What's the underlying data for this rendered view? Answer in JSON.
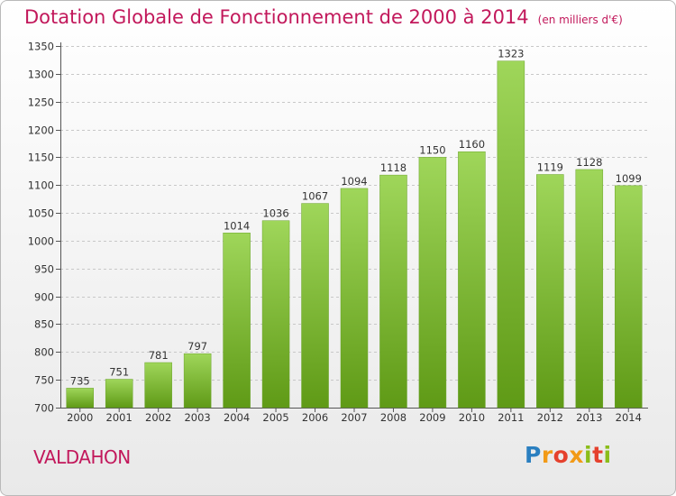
{
  "header": {
    "title": "Dotation Globale de Fonctionnement de 2000 à 2014",
    "unit": "(en milliers d'€)"
  },
  "footer": {
    "commune": "VALDAHON",
    "logo_text": "Proxiti"
  },
  "colors": {
    "title": "#c2185b",
    "bar_top": "#9fd65a",
    "bar_bottom": "#5f9a16",
    "grid": "#c8c8c8"
  },
  "chart_data": {
    "type": "bar",
    "categories": [
      "2000",
      "2001",
      "2002",
      "2003",
      "2004",
      "2005",
      "2006",
      "2007",
      "2008",
      "2009",
      "2010",
      "2011",
      "2012",
      "2013",
      "2014"
    ],
    "values": [
      735,
      751,
      781,
      797,
      1014,
      1036,
      1067,
      1094,
      1118,
      1150,
      1160,
      1323,
      1119,
      1128,
      1099
    ],
    "ylim": [
      700,
      1350
    ],
    "yticks": [
      700,
      750,
      800,
      850,
      900,
      950,
      1000,
      1050,
      1100,
      1150,
      1200,
      1250,
      1300,
      1350
    ],
    "grid": true,
    "data_labels": true
  }
}
